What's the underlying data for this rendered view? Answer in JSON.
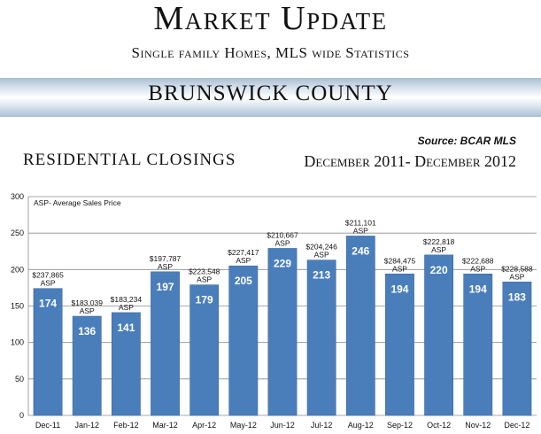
{
  "header": {
    "title": "Market Update",
    "subtitle": "Single family Homes, MLS wide Statistics",
    "county": "BRUNSWICK COUNTY"
  },
  "source": "Source: BCAR MLS",
  "section_title": "RESIDENTIAL CLOSINGS",
  "date_range": "December 2011- December 2012",
  "colors": {
    "bar": "#4a7ebb",
    "bar_edge": "#3a6aa5",
    "grid": "#8c8c8c"
  },
  "chart_data": {
    "type": "bar",
    "note": "ASP- Average Sales Price",
    "categories": [
      "Dec-11",
      "Jan-12",
      "Feb-12",
      "Mar-12",
      "Apr-12",
      "May-12",
      "Jun-12",
      "Jul-12",
      "Aug-12",
      "Sep-12",
      "Oct-12",
      "Nov-12",
      "Dec-12"
    ],
    "values": [
      174,
      136,
      141,
      197,
      179,
      205,
      229,
      213,
      246,
      194,
      220,
      194,
      183
    ],
    "asp": [
      "$237,865",
      "$183,039",
      "$183,234",
      "$197,787",
      "$223,548",
      "$227,417",
      "$210,667",
      "$204,246",
      "$211,101",
      "$284,475",
      "$222,818",
      "$222,688",
      "$228,588"
    ],
    "asp_suffix": "ASP",
    "ylim": [
      0,
      300
    ],
    "yticks": [
      "0",
      "50",
      "100",
      "150",
      "200",
      "250",
      "300"
    ],
    "grid": true
  }
}
